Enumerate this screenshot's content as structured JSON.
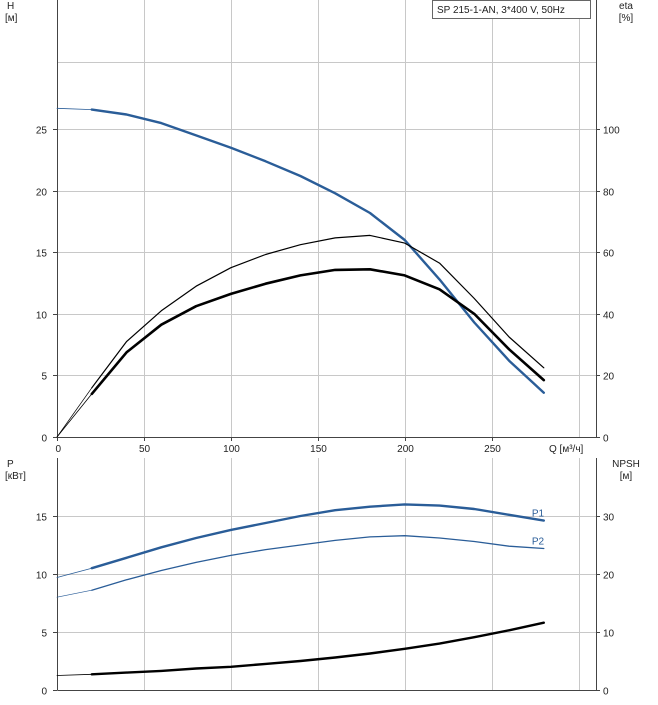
{
  "chart_data": [
    {
      "type": "line",
      "panel": "top",
      "title": "",
      "legend_text": "SP 215-1-AN, 3*400 V, 50Hz",
      "legend_placement": "top-right",
      "grid": true,
      "xlabel": "Q [м³/ч]",
      "xlim": [
        0,
        310
      ],
      "x_ticks": [
        0,
        50,
        100,
        150,
        200,
        250
      ],
      "x_tick_labels": [
        "0",
        "50",
        "100",
        "150",
        "200",
        "250"
      ],
      "y_left": {
        "label_line1": "H",
        "label_line2": "[м]",
        "lim": [
          0,
          30
        ],
        "ticks": [
          0,
          5,
          10,
          15,
          20,
          25
        ],
        "tick_labels": [
          "0",
          "5",
          "10",
          "15",
          "20",
          "25"
        ]
      },
      "y_right": {
        "label_line1": "eta",
        "label_line2": "[%]",
        "lim": [
          0,
          120
        ],
        "ticks": [
          0,
          20,
          40,
          60,
          80,
          100
        ],
        "tick_labels": [
          "0",
          "20",
          "40",
          "60",
          "80",
          "100"
        ]
      },
      "series": [
        {
          "key": "H",
          "axis": "left",
          "color": "#2a5d98",
          "ext": [
            [
              0,
              26.7
            ],
            [
              20,
              26.6
            ]
          ],
          "values": [
            [
              20,
              26.6
            ],
            [
              40,
              26.2
            ],
            [
              60,
              25.5
            ],
            [
              80,
              24.5
            ],
            [
              100,
              23.5
            ],
            [
              120,
              22.4
            ],
            [
              140,
              21.2
            ],
            [
              160,
              19.8
            ],
            [
              180,
              18.2
            ],
            [
              200,
              16.0
            ],
            [
              220,
              12.8
            ],
            [
              240,
              9.3
            ],
            [
              260,
              6.2
            ],
            [
              280,
              3.6
            ]
          ]
        },
        {
          "key": "eta_thin",
          "axis": "right",
          "color": "#000000",
          "ext": [
            [
              0,
              0
            ],
            [
              20,
              16
            ]
          ],
          "values": [
            [
              20,
              16
            ],
            [
              40,
              31
            ],
            [
              60,
              41
            ],
            [
              80,
              49
            ],
            [
              100,
              55
            ],
            [
              120,
              59.3
            ],
            [
              140,
              62.5
            ],
            [
              160,
              64.7
            ],
            [
              180,
              65.5
            ],
            [
              200,
              63
            ],
            [
              220,
              56.5
            ],
            [
              240,
              45
            ],
            [
              260,
              32.5
            ],
            [
              280,
              22.5
            ]
          ]
        },
        {
          "key": "eta_thick",
          "axis": "right",
          "color": "#000000",
          "ext": [
            [
              0,
              0
            ],
            [
              20,
              14
            ]
          ],
          "values": [
            [
              20,
              14
            ],
            [
              40,
              27.5
            ],
            [
              60,
              36.5
            ],
            [
              80,
              42.5
            ],
            [
              100,
              46.5
            ],
            [
              120,
              49.8
            ],
            [
              140,
              52.5
            ],
            [
              160,
              54.3
            ],
            [
              180,
              54.5
            ],
            [
              200,
              52.5
            ],
            [
              220,
              48
            ],
            [
              240,
              40
            ],
            [
              260,
              28.5
            ],
            [
              280,
              18.5
            ]
          ]
        }
      ]
    },
    {
      "type": "line",
      "panel": "bottom",
      "title": "",
      "grid": true,
      "xlim": [
        0,
        310
      ],
      "y_left": {
        "label_line1": "P",
        "label_line2": "[кВт]",
        "lim": [
          0,
          20
        ],
        "ticks": [
          0,
          5,
          10,
          15
        ],
        "tick_labels": [
          "0",
          "5",
          "10",
          "15"
        ]
      },
      "y_right": {
        "label_line1": "NPSH",
        "label_line2": "[м]",
        "lim": [
          0,
          40
        ],
        "ticks": [
          0,
          10,
          20,
          30
        ],
        "tick_labels": [
          "0",
          "10",
          "20",
          "30"
        ]
      },
      "series": [
        {
          "key": "P1",
          "name": "P1",
          "axis": "left",
          "color": "#2a5d98",
          "ext": [
            [
              0,
              9.7
            ],
            [
              20,
              10.5
            ]
          ],
          "values": [
            [
              20,
              10.5
            ],
            [
              40,
              11.4
            ],
            [
              60,
              12.3
            ],
            [
              80,
              13.1
            ],
            [
              100,
              13.8
            ],
            [
              120,
              14.4
            ],
            [
              140,
              15.0
            ],
            [
              160,
              15.5
            ],
            [
              180,
              15.8
            ],
            [
              200,
              16.0
            ],
            [
              220,
              15.9
            ],
            [
              240,
              15.6
            ],
            [
              260,
              15.1
            ],
            [
              280,
              14.6
            ]
          ]
        },
        {
          "key": "P2",
          "name": "P2",
          "axis": "left",
          "color": "#2a5d98",
          "ext": [
            [
              0,
              8.0
            ],
            [
              20,
              8.6
            ]
          ],
          "values": [
            [
              20,
              8.6
            ],
            [
              40,
              9.5
            ],
            [
              60,
              10.3
            ],
            [
              80,
              11.0
            ],
            [
              100,
              11.6
            ],
            [
              120,
              12.1
            ],
            [
              140,
              12.5
            ],
            [
              160,
              12.9
            ],
            [
              180,
              13.2
            ],
            [
              200,
              13.3
            ],
            [
              220,
              13.1
            ],
            [
              240,
              12.8
            ],
            [
              260,
              12.4
            ],
            [
              280,
              12.2
            ]
          ]
        },
        {
          "key": "NPSH",
          "axis": "right",
          "color": "#000000",
          "ext": [
            [
              0,
              2.5
            ],
            [
              20,
              2.7
            ]
          ],
          "values": [
            [
              20,
              2.7
            ],
            [
              40,
              3.0
            ],
            [
              60,
              3.3
            ],
            [
              80,
              3.7
            ],
            [
              100,
              4.0
            ],
            [
              120,
              4.5
            ],
            [
              140,
              5.0
            ],
            [
              160,
              5.6
            ],
            [
              180,
              6.3
            ],
            [
              200,
              7.1
            ],
            [
              220,
              8.0
            ],
            [
              240,
              9.1
            ],
            [
              260,
              10.3
            ],
            [
              280,
              11.6
            ]
          ]
        }
      ]
    }
  ]
}
